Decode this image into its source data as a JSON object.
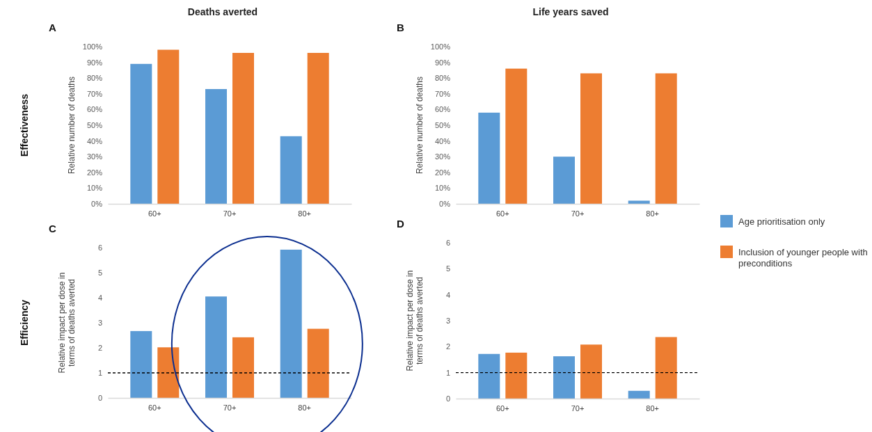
{
  "chart_data": [
    {
      "type": "bar",
      "title": "Deaths averted",
      "ylabel": "Relative number of deaths",
      "annotations": [
        "A",
        "Effectiveness"
      ],
      "categories": [
        "60+",
        "70+",
        "80+"
      ],
      "series": [
        {
          "color": "#5b9bd5",
          "values": [
            89,
            73,
            43
          ]
        },
        {
          "color": "#ed7d31",
          "values": [
            98,
            96,
            96
          ]
        }
      ],
      "ylim": [
        0,
        100
      ],
      "yticks": [
        {
          "value": 0,
          "label": "0%"
        },
        {
          "value": 10,
          "label": "10%"
        },
        {
          "value": 20,
          "label": "20%"
        },
        {
          "value": 30,
          "label": "30%"
        },
        {
          "value": 40,
          "label": "40%"
        },
        {
          "value": 50,
          "label": "50%"
        },
        {
          "value": 60,
          "label": "60%"
        },
        {
          "value": 70,
          "label": "70%"
        },
        {
          "value": 80,
          "label": "80%"
        },
        {
          "value": 90,
          "label": "90%"
        },
        {
          "value": 100,
          "label": "100%"
        }
      ],
      "grid": false,
      "legend": false
    },
    {
      "type": "bar",
      "title": "Life years saved",
      "ylabel": "Relative number of deaths",
      "annotations": [
        "B"
      ],
      "categories": [
        "60+",
        "70+",
        "80+"
      ],
      "series": [
        {
          "color": "#5b9bd5",
          "values": [
            58,
            30,
            2
          ]
        },
        {
          "color": "#ed7d31",
          "values": [
            86,
            83,
            83
          ]
        }
      ],
      "ylim": [
        0,
        100
      ],
      "yticks": [
        {
          "value": 0,
          "label": "0%"
        },
        {
          "value": 10,
          "label": "10%"
        },
        {
          "value": 20,
          "label": "20%"
        },
        {
          "value": 30,
          "label": "30%"
        },
        {
          "value": 40,
          "label": "40%"
        },
        {
          "value": 50,
          "label": "50%"
        },
        {
          "value": 60,
          "label": "60%"
        },
        {
          "value": 70,
          "label": "70%"
        },
        {
          "value": 80,
          "label": "80%"
        },
        {
          "value": 90,
          "label": "90%"
        },
        {
          "value": 100,
          "label": "100%"
        }
      ],
      "grid": false,
      "legend": false
    },
    {
      "type": "bar",
      "ylabel": "Relative impact per dose in terms of deaths averted",
      "annotations": [
        "C",
        "Efficiency"
      ],
      "categories": [
        "60+",
        "70+",
        "80+"
      ],
      "series": [
        {
          "color": "#5b9bd5",
          "values": [
            2.67,
            4.05,
            5.92
          ]
        },
        {
          "color": "#ed7d31",
          "values": [
            2.02,
            2.42,
            2.76
          ]
        }
      ],
      "ylim": [
        0,
        6
      ],
      "yticks": [
        0,
        1,
        2,
        3,
        4,
        5,
        6
      ],
      "grid": false,
      "legend": false,
      "ref_lines": [
        {
          "axis": "y",
          "value": 1,
          "color": "#000000",
          "line_style": "dashed"
        }
      ]
    },
    {
      "type": "bar",
      "ylabel": "Relative impact per dose in terms of deaths averted",
      "annotations": [
        "D"
      ],
      "categories": [
        "60+",
        "70+",
        "80+"
      ],
      "series": [
        {
          "name": "Age prioritisation only",
          "color": "#5b9bd5",
          "values": [
            1.72,
            1.63,
            0.3
          ]
        },
        {
          "name": "Inclusion of younger people with preconditions",
          "color": "#ed7d31",
          "values": [
            1.77,
            2.08,
            2.37
          ]
        }
      ],
      "ylim": [
        0,
        6
      ],
      "yticks": [
        0,
        1,
        2,
        3,
        4,
        5,
        6
      ],
      "grid": false,
      "legend": "right",
      "ref_lines": [
        {
          "axis": "y",
          "value": 1,
          "color": "#000000",
          "line_style": "dashed"
        }
      ]
    }
  ]
}
